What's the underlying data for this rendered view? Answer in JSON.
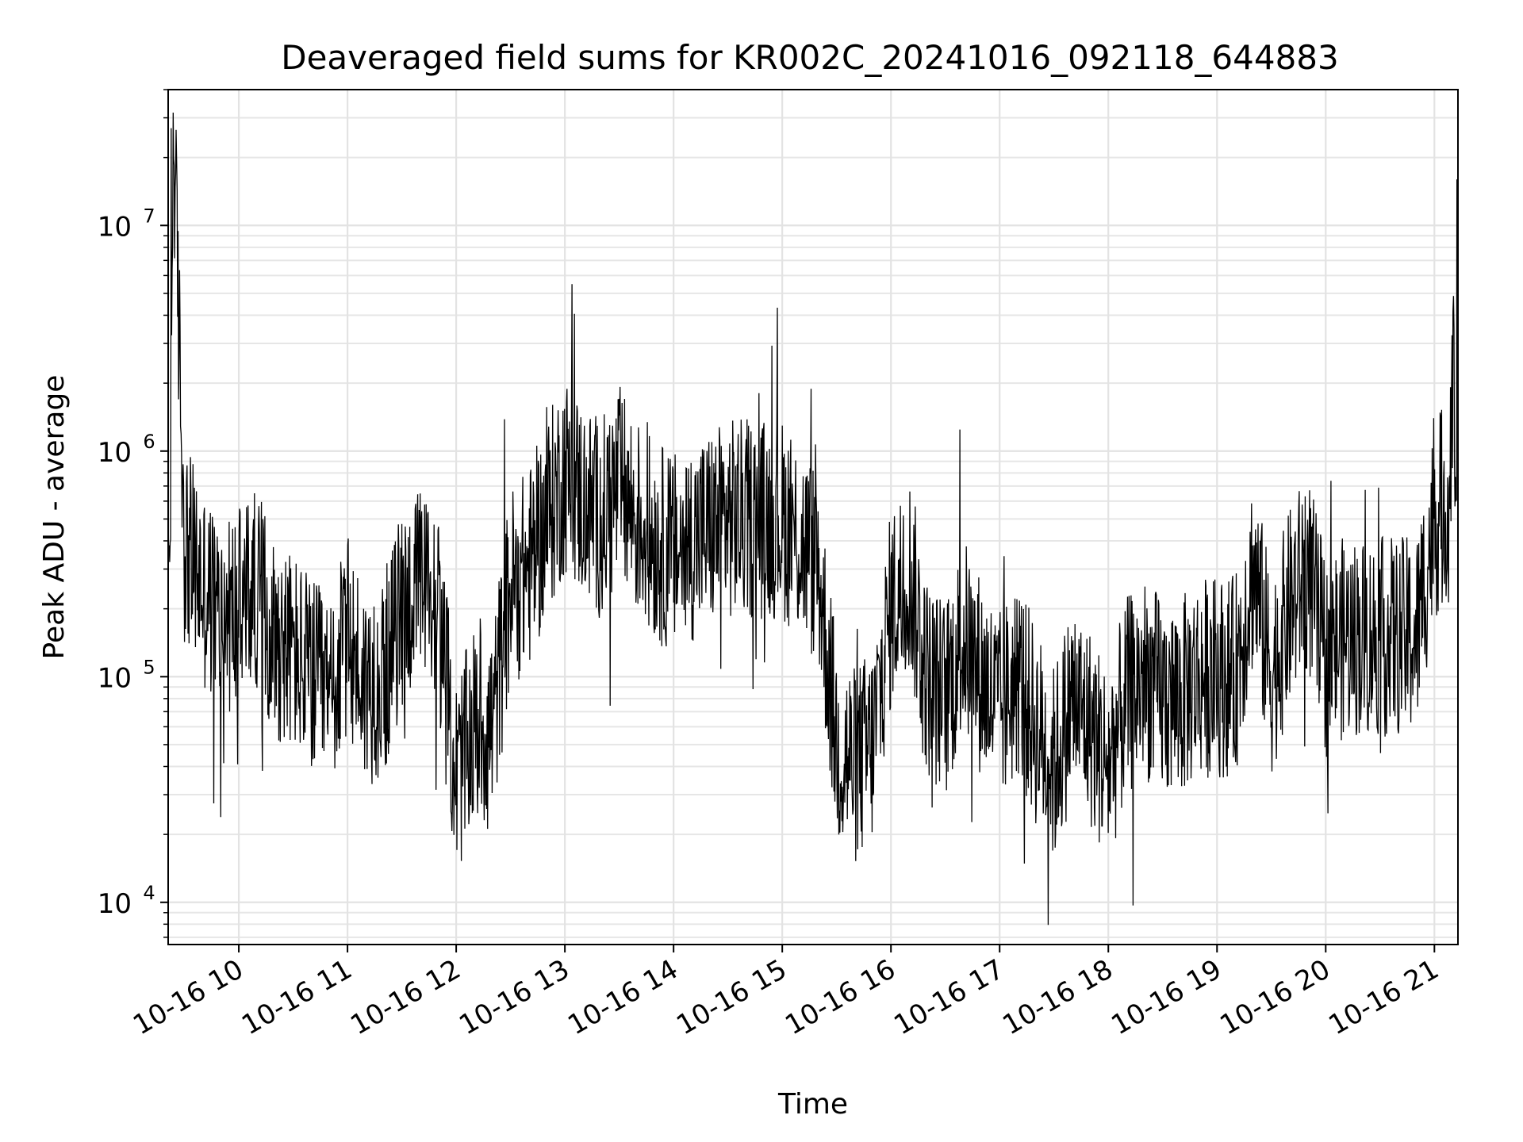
{
  "chart_data": {
    "type": "line",
    "title": "Deaveraged field sums for KR002C_20241016_092118_644883",
    "xlabel": "Time",
    "ylabel": "Peak ADU - average",
    "yscale": "log",
    "ylim": [
      6500,
      40000000
    ],
    "xlim": [
      "2024-10-16 09:21",
      "2024-10-16 21:13"
    ],
    "grid": true,
    "line_color": "#000000",
    "x_tick_labels": [
      "10-16 10",
      "10-16 11",
      "10-16 12",
      "10-16 13",
      "10-16 14",
      "10-16 15",
      "10-16 16",
      "10-16 17",
      "10-16 18",
      "10-16 19",
      "10-16 20",
      "10-16 21"
    ],
    "y_ticks": [
      {
        "value": 10000,
        "base": "10",
        "exponent": "4"
      },
      {
        "value": 100000,
        "base": "10",
        "exponent": "5"
      },
      {
        "value": 1000000,
        "base": "10",
        "exponent": "6"
      },
      {
        "value": 10000000,
        "base": "10",
        "exponent": "7"
      }
    ],
    "series": [
      {
        "x": [
          "2024-10-16 09:21",
          "2024-10-16 09:24",
          "2024-10-16 09:30",
          "2024-10-16 09:40",
          "2024-10-16 09:50",
          "2024-10-16 10:00",
          "2024-10-16 10:10",
          "2024-10-16 10:20",
          "2024-10-16 10:30",
          "2024-10-16 10:40",
          "2024-10-16 10:50",
          "2024-10-16 11:00",
          "2024-10-16 11:10",
          "2024-10-16 11:20",
          "2024-10-16 11:30",
          "2024-10-16 11:40",
          "2024-10-16 11:50",
          "2024-10-16 12:00",
          "2024-10-16 12:10",
          "2024-10-16 12:20",
          "2024-10-16 12:30",
          "2024-10-16 12:40",
          "2024-10-16 12:50",
          "2024-10-16 13:00",
          "2024-10-16 13:10",
          "2024-10-16 13:20",
          "2024-10-16 13:30",
          "2024-10-16 13:40",
          "2024-10-16 13:50",
          "2024-10-16 14:00",
          "2024-10-16 14:10",
          "2024-10-16 14:20",
          "2024-10-16 14:30",
          "2024-10-16 14:40",
          "2024-10-16 14:50",
          "2024-10-16 15:00",
          "2024-10-16 15:10",
          "2024-10-16 15:20",
          "2024-10-16 15:30",
          "2024-10-16 15:40",
          "2024-10-16 15:50",
          "2024-10-16 16:00",
          "2024-10-16 16:10",
          "2024-10-16 16:20",
          "2024-10-16 16:30",
          "2024-10-16 16:40",
          "2024-10-16 16:50",
          "2024-10-16 17:00",
          "2024-10-16 17:10",
          "2024-10-16 17:20",
          "2024-10-16 17:30",
          "2024-10-16 17:40",
          "2024-10-16 17:50",
          "2024-10-16 18:00",
          "2024-10-16 18:10",
          "2024-10-16 18:20",
          "2024-10-16 18:30",
          "2024-10-16 18:40",
          "2024-10-16 18:50",
          "2024-10-16 19:00",
          "2024-10-16 19:10",
          "2024-10-16 19:20",
          "2024-10-16 19:30",
          "2024-10-16 19:40",
          "2024-10-16 19:50",
          "2024-10-16 20:00",
          "2024-10-16 20:10",
          "2024-10-16 20:20",
          "2024-10-16 20:30",
          "2024-10-16 20:40",
          "2024-10-16 20:50",
          "2024-10-16 21:00",
          "2024-10-16 21:08",
          "2024-10-16 21:13"
        ],
        "values": [
          300000,
          27000000,
          400000,
          250000,
          180000,
          200000,
          250000,
          150000,
          130000,
          100000,
          80000,
          150000,
          90000,
          100000,
          200000,
          250000,
          200000,
          35000,
          60000,
          60000,
          250000,
          300000,
          500000,
          800000,
          600000,
          500000,
          700000,
          500000,
          400000,
          350000,
          400000,
          450000,
          500000,
          500000,
          500000,
          500000,
          400000,
          300000,
          50000,
          40000,
          50000,
          200000,
          300000,
          100000,
          80000,
          150000,
          100000,
          70000,
          100000,
          60000,
          40000,
          80000,
          60000,
          40000,
          80000,
          100000,
          80000,
          80000,
          100000,
          100000,
          100000,
          300000,
          100000,
          200000,
          300000,
          120000,
          150000,
          150000,
          150000,
          150000,
          150000,
          500000,
          600000,
          16000000
        ]
      }
    ]
  }
}
